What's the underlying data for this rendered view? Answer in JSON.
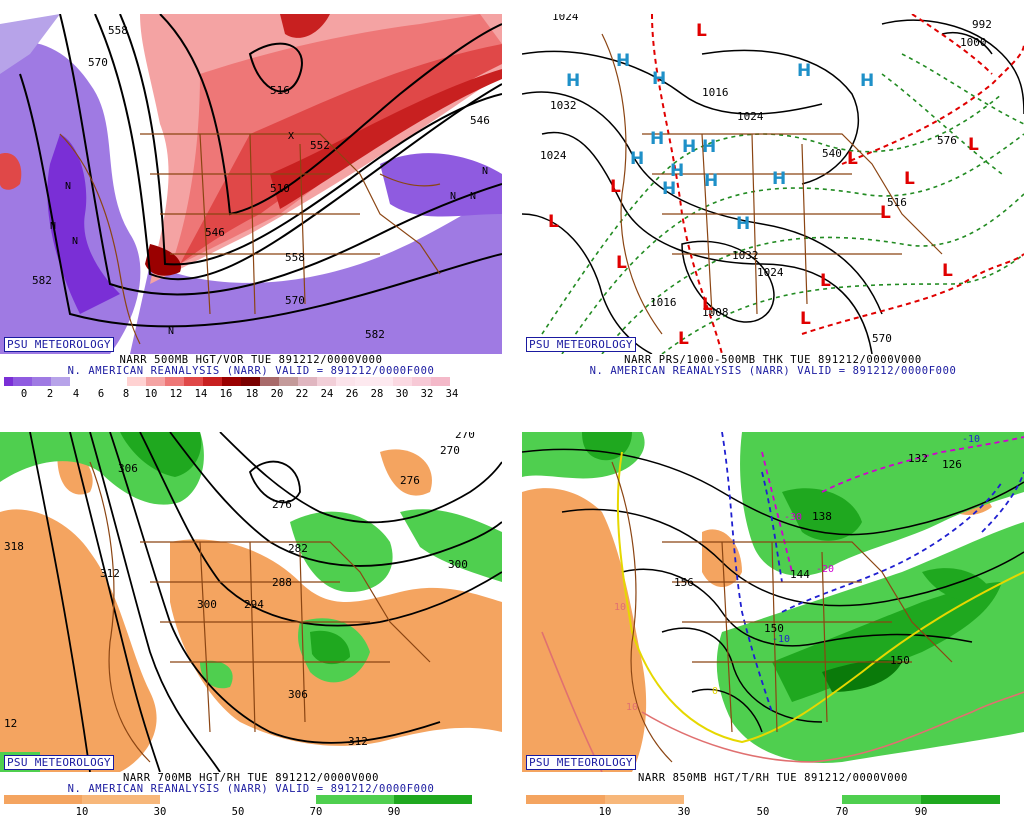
{
  "colors": {
    "vor_neg": [
      "#7a2fd6",
      "#8f5be0",
      "#9f7ae3",
      "#b7a3e9"
    ],
    "vor_pos": [
      "#ffffff",
      "#ffffff",
      "#ffd2d2",
      "#f4a3a3",
      "#ee7777",
      "#e04848",
      "#c82020",
      "#9a0000",
      "#7a0000",
      "#a86a6a",
      "#c49a9a",
      "#e0b6c0",
      "#f2cfd8"
    ],
    "rh_dry": "#f4a460",
    "rh_moist": [
      "#4fcf4f",
      "#1fa81f",
      "#0a7a0a"
    ],
    "text_blue": "#1a1aa0",
    "brown": "#8b4513"
  },
  "panels": [
    {
      "badge": "PSU METEOROLOGY",
      "line1": "NARR 500MB HGT/VOR TUE 891212/0000V000",
      "line2": "N. AMERICAN REANALYSIS (NARR) VALID = 891212/0000F000",
      "colorbar_labels": [
        "0",
        "2",
        "4",
        "6",
        "8",
        "10",
        "12",
        "14",
        "16",
        "18",
        "20",
        "22",
        "24",
        "26",
        "28",
        "30",
        "32",
        "34"
      ],
      "contour_labels": [
        "558",
        "570",
        "516",
        "546",
        "552",
        "582",
        "570",
        "582",
        "546",
        "558",
        "510"
      ],
      "map_letters": [
        "N",
        "N",
        "N",
        "N",
        "N",
        "N",
        "N",
        "X"
      ]
    },
    {
      "badge": "PSU METEOROLOGY",
      "line1": "NARR PRS/1000-500MB THK TUE 891212/0000V000",
      "line2": "N. AMERICAN REANALYSIS (NARR) VALID = 891212/0000F000",
      "isobar_labels": [
        "1024",
        "1032",
        "1024",
        "1016",
        "1024",
        "1032",
        "1024",
        "1008",
        "1016",
        "992",
        "1000"
      ],
      "thickness_labels": [
        "540",
        "576",
        "570",
        "516"
      ],
      "highs": [
        "H",
        "H",
        "H",
        "H",
        "H",
        "H",
        "H",
        "H",
        "H",
        "H",
        "H",
        "H",
        "H",
        "H"
      ],
      "lows": [
        "L",
        "L",
        "L",
        "L",
        "L",
        "L",
        "L",
        "L",
        "L",
        "L",
        "L",
        "L",
        "L"
      ]
    },
    {
      "badge": "PSU METEOROLOGY",
      "line1": "NARR 700MB HGT/RH TUE 891212/0000V000",
      "line2": "N. AMERICAN REANALYSIS (NARR) VALID = 891212/0000F000",
      "colorbar_labels": [
        "10",
        "30",
        "50",
        "70",
        "90"
      ],
      "contour_labels": [
        "306",
        "318",
        "312",
        "276",
        "276",
        "270",
        "282",
        "288",
        "294",
        "300",
        "300",
        "306",
        "312",
        "270",
        "12"
      ]
    },
    {
      "badge": "PSU METEOROLOGY",
      "line1": "NARR 850MB HGT/T/RH TUE 891212/0000V000",
      "line2": "",
      "colorbar_labels": [
        "10",
        "30",
        "50",
        "70",
        "90"
      ],
      "contour_labels": [
        "156",
        "150",
        "144",
        "138",
        "132",
        "126",
        "150"
      ],
      "temp_labels": [
        "-10",
        "-30",
        "-20",
        "-10",
        "10",
        "10",
        "0"
      ]
    }
  ]
}
